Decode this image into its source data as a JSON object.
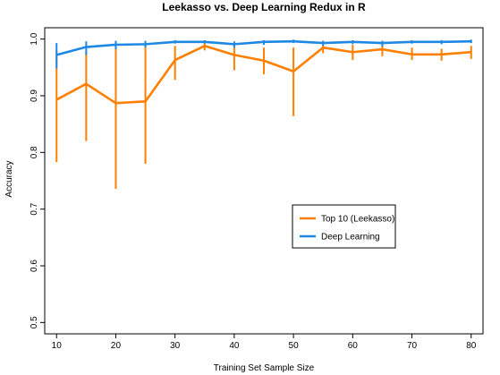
{
  "chart_data": {
    "type": "line",
    "title": "Leekasso vs. Deep Learning Redux in R",
    "xlabel": "Training Set Sample Size",
    "ylabel": "Accuracy",
    "xlim": [
      8,
      82
    ],
    "ylim": [
      0.48,
      1.02
    ],
    "xticks": [
      10,
      20,
      30,
      40,
      50,
      60,
      70,
      80
    ],
    "yticks": [
      0.5,
      0.6,
      0.7,
      0.8,
      0.9,
      1.0
    ],
    "ytick_labels": [
      "0.5",
      "0.6",
      "0.7",
      "0.8",
      "0.9",
      "1.0"
    ],
    "legend_position": "center-right",
    "grid": false,
    "x": [
      10,
      15,
      20,
      25,
      30,
      35,
      40,
      45,
      50,
      55,
      60,
      65,
      70,
      75,
      80
    ],
    "series": [
      {
        "name": "Top 10 (Leekasso)",
        "color": "#ff8000",
        "values": [
          0.893,
          0.921,
          0.887,
          0.89,
          0.963,
          0.988,
          0.972,
          0.962,
          0.943,
          0.985,
          0.977,
          0.982,
          0.973,
          0.973,
          0.977
        ],
        "lower": [
          0.783,
          0.82,
          0.736,
          0.78,
          0.928,
          0.98,
          0.945,
          0.938,
          0.864,
          0.975,
          0.963,
          0.97,
          0.963,
          0.962,
          0.965
        ],
        "upper": [
          0.978,
          0.978,
          0.992,
          0.993,
          0.988,
          0.993,
          0.988,
          0.985,
          0.985,
          0.99,
          0.99,
          0.992,
          0.985,
          0.983,
          0.988
        ]
      },
      {
        "name": "Deep Learning",
        "color": "#1e88e5",
        "values": [
          0.972,
          0.986,
          0.99,
          0.991,
          0.995,
          0.995,
          0.991,
          0.995,
          0.996,
          0.993,
          0.995,
          0.993,
          0.995,
          0.995,
          0.996
        ],
        "lower": [
          0.948,
          0.972,
          0.982,
          0.985,
          0.992,
          0.992,
          0.985,
          0.99,
          0.993,
          0.988,
          0.991,
          0.987,
          0.992,
          0.991,
          0.993
        ],
        "upper": [
          0.993,
          0.996,
          0.997,
          0.997,
          0.998,
          0.998,
          0.996,
          0.998,
          0.999,
          0.997,
          0.998,
          0.997,
          0.998,
          0.998,
          0.999
        ]
      }
    ]
  }
}
